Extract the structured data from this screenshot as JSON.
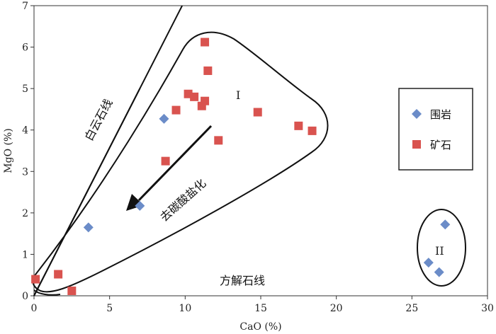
{
  "chart_data": {
    "type": "scatter",
    "xlabel": "CaO (%)",
    "ylabel": "MgO (%)",
    "xlim": [
      0,
      30
    ],
    "ylim": [
      0,
      7
    ],
    "xticks": [
      0,
      5,
      10,
      15,
      20,
      25,
      30
    ],
    "yticks": [
      0,
      1,
      2,
      3,
      4,
      5,
      6,
      7
    ],
    "grid": false,
    "legend_position": "right",
    "series": [
      {
        "name": "围岩",
        "marker": "diamond",
        "color": "#6b8cc8",
        "points": [
          {
            "x": 8.6,
            "y": 4.27
          },
          {
            "x": 7.0,
            "y": 2.17
          },
          {
            "x": 3.6,
            "y": 1.65
          },
          {
            "x": 27.2,
            "y": 1.72
          },
          {
            "x": 26.1,
            "y": 0.8
          },
          {
            "x": 26.8,
            "y": 0.57
          }
        ]
      },
      {
        "name": "矿石",
        "marker": "square",
        "color": "#d9534f",
        "points": [
          {
            "x": 11.3,
            "y": 6.12
          },
          {
            "x": 11.5,
            "y": 5.43
          },
          {
            "x": 10.2,
            "y": 4.87
          },
          {
            "x": 10.6,
            "y": 4.8
          },
          {
            "x": 11.3,
            "y": 4.7
          },
          {
            "x": 11.1,
            "y": 4.58
          },
          {
            "x": 9.4,
            "y": 4.48
          },
          {
            "x": 14.8,
            "y": 4.43
          },
          {
            "x": 17.5,
            "y": 4.1
          },
          {
            "x": 18.4,
            "y": 3.98
          },
          {
            "x": 12.2,
            "y": 3.75
          },
          {
            "x": 8.7,
            "y": 3.25
          },
          {
            "x": 0.1,
            "y": 0.4
          },
          {
            "x": 1.6,
            "y": 0.52
          },
          {
            "x": 2.5,
            "y": 0.12
          }
        ]
      }
    ],
    "reference_lines": [
      {
        "label": "白云石线",
        "from": [
          0,
          0
        ],
        "to": [
          9.8,
          7.0
        ]
      },
      {
        "from": [
          0,
          0
        ],
        "to": [
          7.0,
          5.0
        ]
      }
    ],
    "field_labels": [
      "I",
      "II"
    ],
    "annotations": [
      "去碳酸盐化",
      "方解石线"
    ]
  }
}
